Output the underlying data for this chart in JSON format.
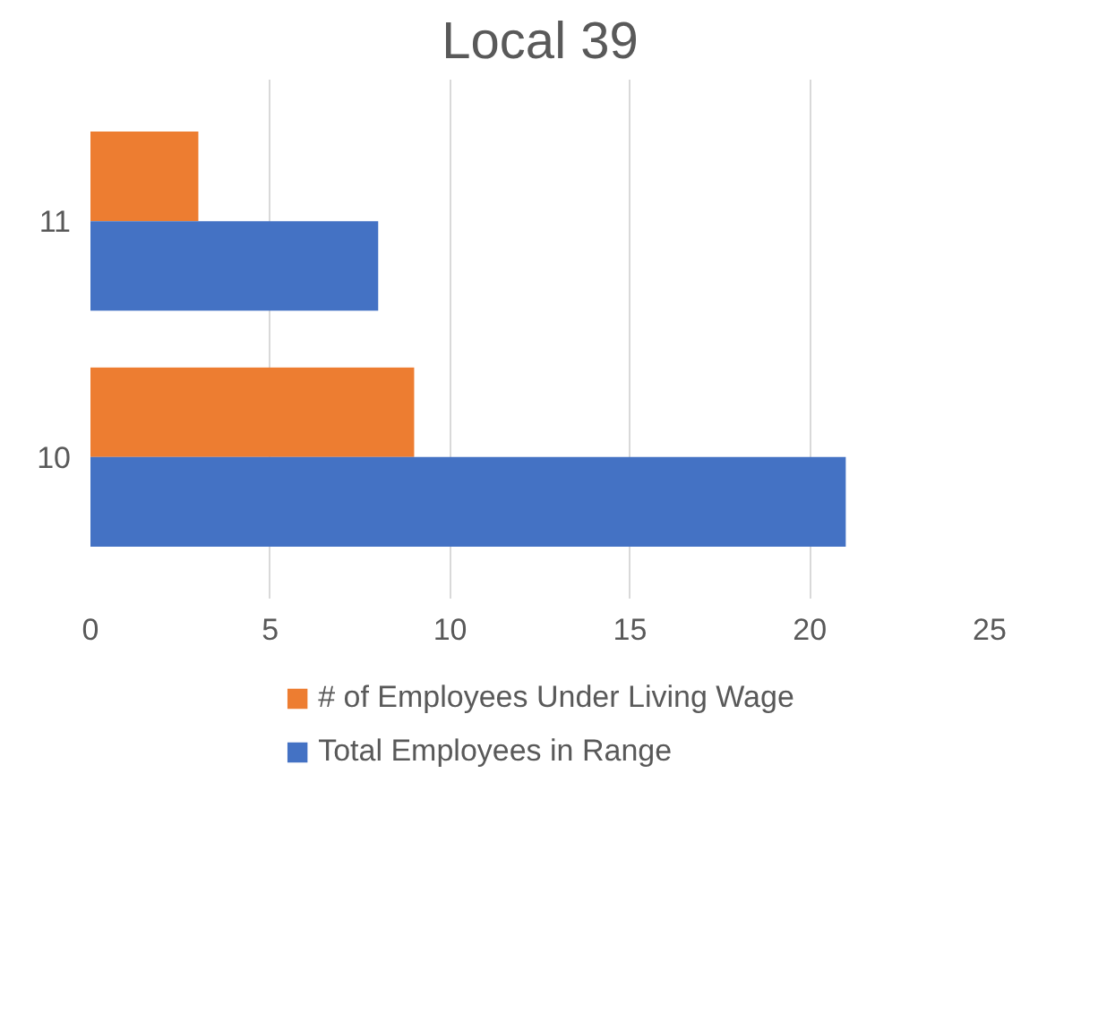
{
  "chart_data": {
    "type": "bar",
    "orientation": "horizontal",
    "title": "Local 39",
    "categories": [
      "11",
      "10"
    ],
    "series": [
      {
        "name": "# of Employees Under Living Wage",
        "color": "#ed7d31",
        "values": [
          3,
          9
        ]
      },
      {
        "name": "Total Employees in Range",
        "color": "#4472c4",
        "values": [
          8,
          21
        ]
      }
    ],
    "xlim": [
      0,
      25
    ],
    "xticks": [
      0,
      5,
      10,
      15,
      20,
      25
    ],
    "grid": "x",
    "legend": "bottom"
  }
}
